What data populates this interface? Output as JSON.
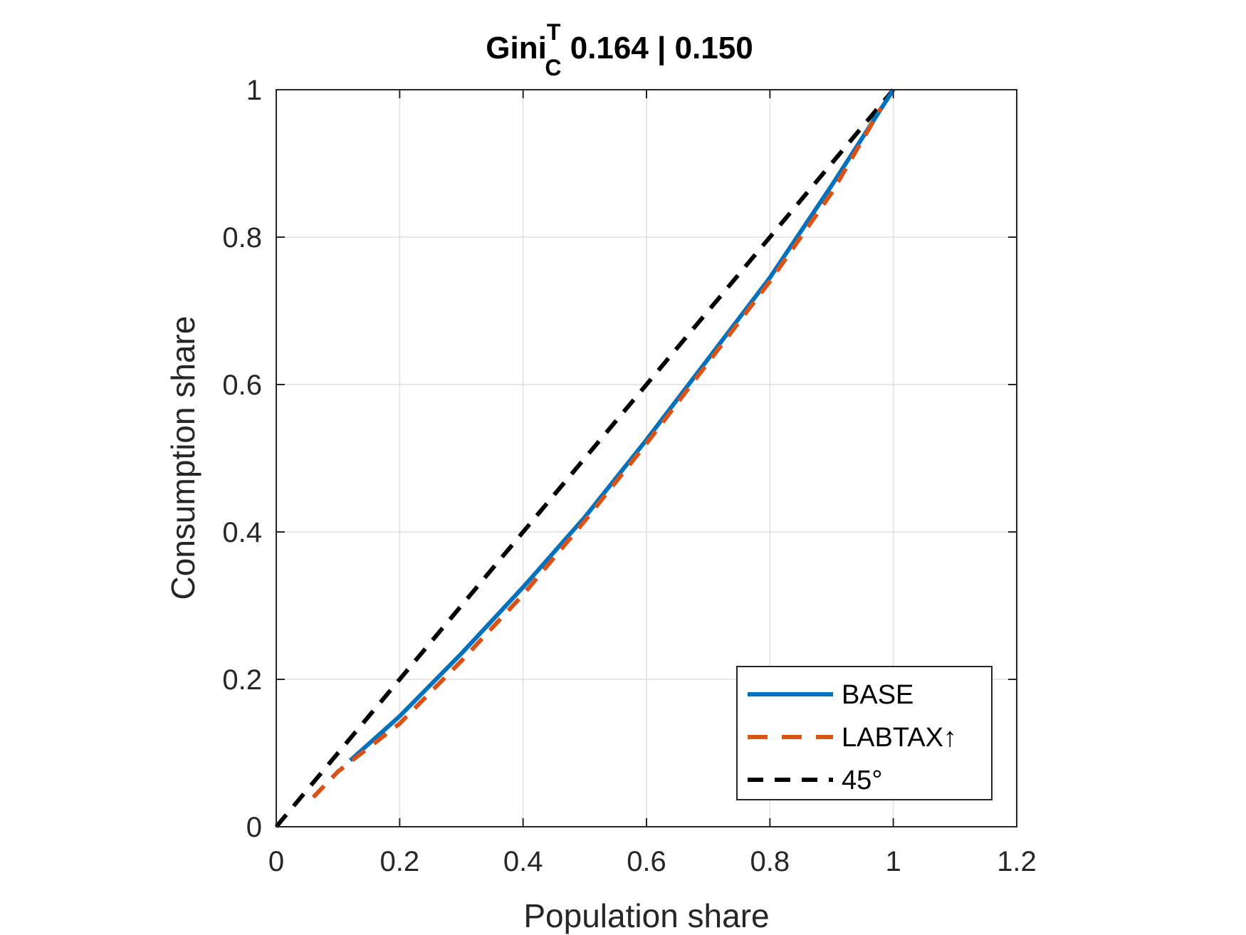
{
  "chart_data": {
    "type": "line",
    "title": {
      "main": "Gini",
      "superscript": "T",
      "subscript": "C",
      "suffix": " 0.164 | 0.150"
    },
    "xlabel": "Population share",
    "ylabel": "Consumption share",
    "xlim": [
      0,
      1.2
    ],
    "ylim": [
      0,
      1
    ],
    "xticks": [
      0,
      0.2,
      0.4,
      0.6,
      0.8,
      1,
      1.2
    ],
    "xtick_labels": [
      "0",
      "0.2",
      "0.4",
      "0.6",
      "0.8",
      "1",
      "1.2"
    ],
    "yticks": [
      0,
      0.2,
      0.4,
      0.6,
      0.8,
      1
    ],
    "ytick_labels": [
      "0",
      "0.2",
      "0.4",
      "0.6",
      "0.8",
      "1"
    ],
    "grid": true,
    "legend_position": "bottom-right",
    "series": [
      {
        "name": "BASE",
        "color": "#0072BD",
        "style": "solid",
        "x": [
          0.12,
          0.2,
          0.3,
          0.4,
          0.5,
          0.6,
          0.7,
          0.8,
          0.9,
          1.0
        ],
        "y": [
          0.09,
          0.15,
          0.235,
          0.325,
          0.42,
          0.525,
          0.635,
          0.745,
          0.87,
          1.0
        ]
      },
      {
        "name": "LABTAX↑",
        "color": "#D95319",
        "style": "dashed",
        "x": [
          0.06,
          0.1,
          0.2,
          0.3,
          0.4,
          0.5,
          0.6,
          0.7,
          0.8,
          0.9,
          0.98
        ],
        "y": [
          0.04,
          0.075,
          0.14,
          0.225,
          0.315,
          0.415,
          0.52,
          0.63,
          0.74,
          0.86,
          0.975
        ]
      },
      {
        "name": "45°",
        "color": "#000000",
        "style": "dashed",
        "x": [
          0,
          1
        ],
        "y": [
          0,
          1
        ]
      }
    ]
  }
}
